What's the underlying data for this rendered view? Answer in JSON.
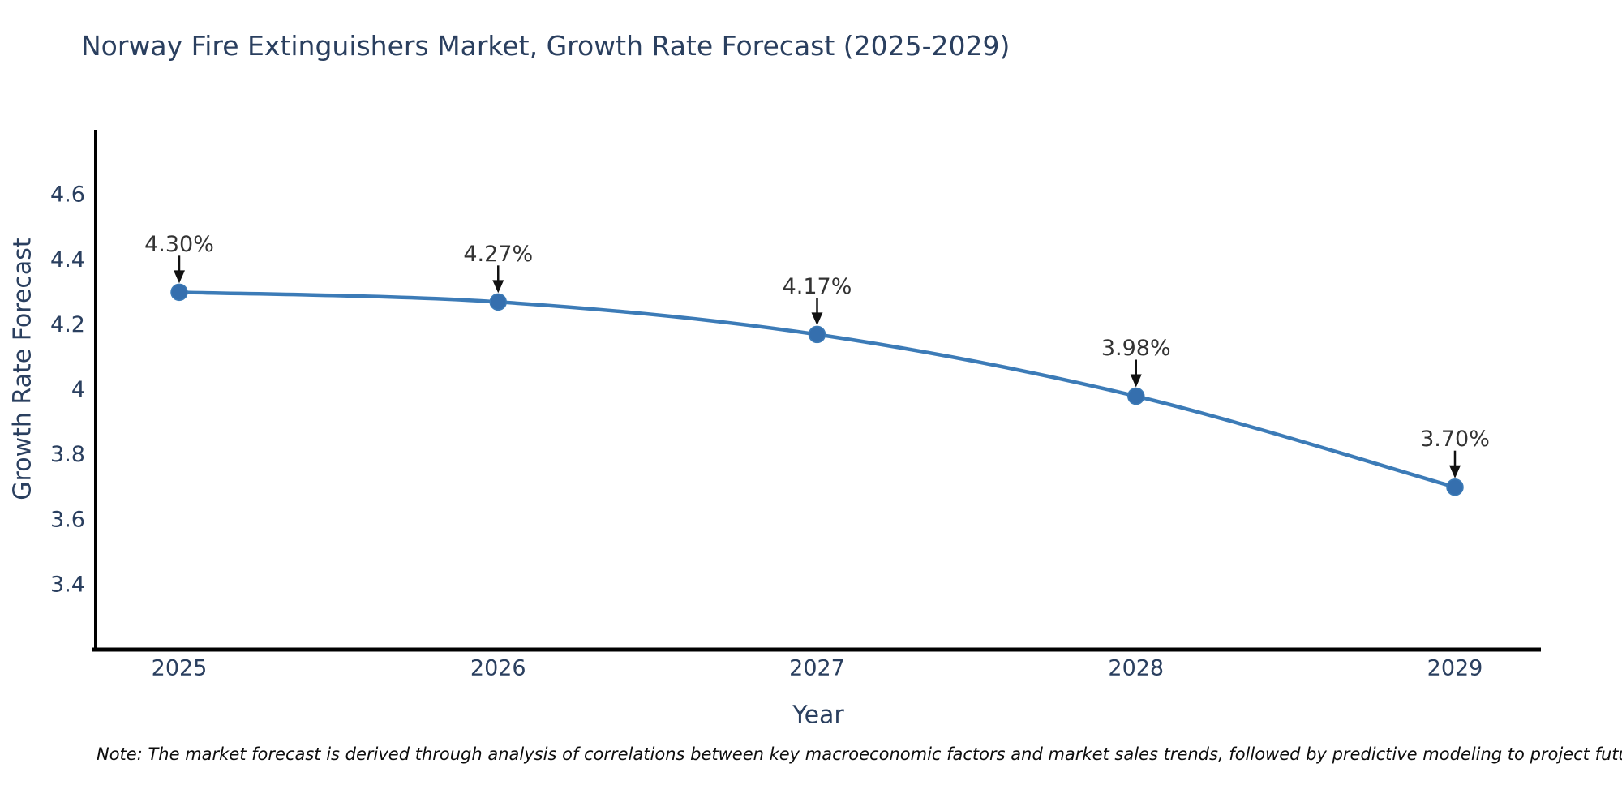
{
  "page": {
    "background": "#ffffff"
  },
  "title": "Norway Fire Extinguishers Market, Growth Rate Forecast (2025-2029)",
  "note": "Note: The market forecast is derived through analysis of correlations between key macroeconomic factors and market sales trends, followed by predictive modeling to project future sales",
  "chart_data": {
    "type": "line",
    "x": [
      2025,
      2026,
      2027,
      2028,
      2029
    ],
    "series": [
      {
        "name": "Growth Rate Forecast",
        "values": [
          4.3,
          4.27,
          4.17,
          3.98,
          3.7
        ]
      }
    ],
    "point_labels": [
      "4.30%",
      "4.27%",
      "4.17%",
      "3.98%",
      "3.70%"
    ],
    "title": "Norway Fire Extinguishers Market, Growth Rate Forecast (2025-2029)",
    "xlabel": "Year",
    "ylabel": "Growth Rate Forecast",
    "ylim": [
      3.2,
      4.8
    ],
    "yticks": [
      3.4,
      3.6,
      3.8,
      4,
      4.2,
      4.4,
      4.6
    ],
    "grid": false,
    "legend": "none",
    "line_shape": "spline",
    "annotation_arrows": true,
    "colors": {
      "line": "#3c7bb7",
      "marker": "#356fae",
      "axis": "#000000",
      "tick_label": "#2a3f5f",
      "axis_title": "#2a3f5f",
      "chart_title": "#2a3f5f",
      "annotation_text": "#333333",
      "arrow": "#111111"
    }
  }
}
